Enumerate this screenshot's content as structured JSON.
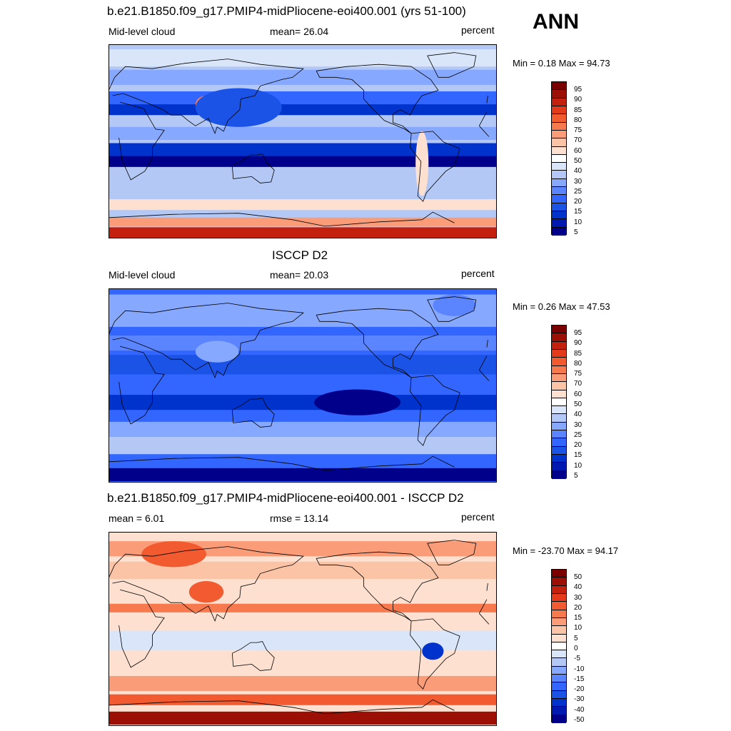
{
  "season": "ANN",
  "panels": [
    {
      "title": "b.e21.B1850.f09_g17.PMIP4-midPliocene-eoi400.001 (yrs 51-100)",
      "left_label": "Mid-level cloud",
      "center_label": "mean=  26.04",
      "right_label": "percent",
      "minmax": "Min =   0.18 Max =  94.73",
      "palette": [
        "#00008b",
        "#0019b0",
        "#0033cc",
        "#1a53e6",
        "#3366ff",
        "#5b85ff",
        "#87a8ff",
        "#b3c8f5",
        "#d9e6fa",
        "#ffffff",
        "#fde0cf",
        "#fcc4a6",
        "#fb9c78",
        "#f7794e",
        "#f25a30",
        "#e23a1a",
        "#c4200e",
        "#9c0f05",
        "#7a0000"
      ],
      "colorbar_ticks": [
        "95",
        "90",
        "85",
        "80",
        "75",
        "70",
        "60",
        "50",
        "40",
        "30",
        "25",
        "20",
        "15",
        "10",
        "5"
      ],
      "bg": "#b3c8f5",
      "bands": [
        {
          "lat": 78,
          "h": 16,
          "c": "#d9e6fa"
        },
        {
          "lat": 60,
          "h": 14,
          "c": "#87a8ff"
        },
        {
          "lat": 38,
          "h": 18,
          "c": "#3366ff"
        },
        {
          "lat": 30,
          "h": 10,
          "c": "#0033cc"
        },
        {
          "lat": 8,
          "h": 12,
          "c": "#87a8ff"
        },
        {
          "lat": -12,
          "h": 22,
          "c": "#0033cc"
        },
        {
          "lat": -18,
          "h": 10,
          "c": "#00008b"
        },
        {
          "lat": -45,
          "h": 10,
          "c": "#b3c8f5"
        },
        {
          "lat": -58,
          "h": 10,
          "c": "#fde0cf"
        },
        {
          "lat": -74,
          "h": 8,
          "c": "#fb9c78"
        },
        {
          "lat": -84,
          "h": 10,
          "c": "#c4200e"
        }
      ],
      "blobs": [
        {
          "lon": 90,
          "lat": 35,
          "w": 10,
          "h": 8,
          "c": "#f7794e"
        },
        {
          "lon": 100,
          "lat": 32,
          "w": 18,
          "h": 10,
          "c": "#d9e6fa"
        },
        {
          "lon": -70,
          "lat": -20,
          "w": 6,
          "h": 30,
          "c": "#fde0cf"
        },
        {
          "lon": 120,
          "lat": 32,
          "w": 40,
          "h": 18,
          "c": "#1a53e6"
        }
      ]
    },
    {
      "title": "ISCCP D2",
      "left_label": "Mid-level cloud",
      "center_label": "mean=  20.03",
      "right_label": "percent",
      "minmax": "Min =   0.26 Max =  47.53",
      "palette": [
        "#00008b",
        "#0019b0",
        "#0033cc",
        "#1a53e6",
        "#3366ff",
        "#5b85ff",
        "#87a8ff",
        "#b3c8f5",
        "#d9e6fa",
        "#ffffff",
        "#fde0cf",
        "#fcc4a6",
        "#fb9c78",
        "#f7794e",
        "#f25a30",
        "#e23a1a",
        "#c4200e",
        "#9c0f05",
        "#7a0000"
      ],
      "colorbar_ticks": [
        "95",
        "90",
        "85",
        "80",
        "75",
        "70",
        "60",
        "50",
        "40",
        "30",
        "25",
        "20",
        "15",
        "10",
        "5"
      ],
      "bg": "#3366ff",
      "bands": [
        {
          "lat": 70,
          "h": 30,
          "c": "#87a8ff"
        },
        {
          "lat": 40,
          "h": 14,
          "c": "#5b85ff"
        },
        {
          "lat": 20,
          "h": 18,
          "c": "#1a53e6"
        },
        {
          "lat": -15,
          "h": 14,
          "c": "#0033cc"
        },
        {
          "lat": -40,
          "h": 14,
          "c": "#87a8ff"
        },
        {
          "lat": -55,
          "h": 16,
          "c": "#b3c8f5"
        },
        {
          "lat": -82,
          "h": 12,
          "c": "#00008b"
        }
      ],
      "blobs": [
        {
          "lon": -130,
          "lat": -15,
          "w": 40,
          "h": 12,
          "c": "#00008b"
        },
        {
          "lon": -40,
          "lat": 75,
          "w": 20,
          "h": 10,
          "c": "#5b85ff"
        },
        {
          "lon": 100,
          "lat": 32,
          "w": 20,
          "h": 10,
          "c": "#87a8ff"
        }
      ]
    },
    {
      "title": "b.e21.B1850.f09_g17.PMIP4-midPliocene-eoi400.001 - ISCCP D2",
      "left_label": "mean =   6.01",
      "center_label": "rmse =  13.14",
      "right_label": "percent",
      "minmax": "Min = -23.70 Max =  94.17",
      "palette": [
        "#00008b",
        "#0019b0",
        "#0033cc",
        "#1a53e6",
        "#3366ff",
        "#5b85ff",
        "#87a8ff",
        "#b3c8f5",
        "#d9e6fa",
        "#ffffff",
        "#fde0cf",
        "#fcc4a6",
        "#fb9c78",
        "#f7794e",
        "#f25a30",
        "#e23a1a",
        "#c4200e",
        "#9c0f05",
        "#7a0000"
      ],
      "colorbar_ticks": [
        "50",
        "40",
        "30",
        "20",
        "15",
        "10",
        "5",
        "0",
        "-5",
        "-10",
        "-15",
        "-20",
        "-30",
        "-40",
        "-50"
      ],
      "bg": "#fde0cf",
      "bands": [
        {
          "lat": 75,
          "h": 14,
          "c": "#fb9c78"
        },
        {
          "lat": 55,
          "h": 16,
          "c": "#fcc4a6"
        },
        {
          "lat": 20,
          "h": 8,
          "c": "#f7794e"
        },
        {
          "lat": -10,
          "h": 18,
          "c": "#d9e6fa"
        },
        {
          "lat": -50,
          "h": 14,
          "c": "#fb9c78"
        },
        {
          "lat": -65,
          "h": 10,
          "c": "#f25a30"
        },
        {
          "lat": -82,
          "h": 12,
          "c": "#9c0f05"
        }
      ],
      "blobs": [
        {
          "lon": -60,
          "lat": -20,
          "w": 10,
          "h": 8,
          "c": "#0033cc"
        },
        {
          "lon": 60,
          "lat": 70,
          "w": 30,
          "h": 12,
          "c": "#f25a30"
        },
        {
          "lon": 90,
          "lat": 35,
          "w": 16,
          "h": 10,
          "c": "#f25a30"
        }
      ]
    }
  ]
}
